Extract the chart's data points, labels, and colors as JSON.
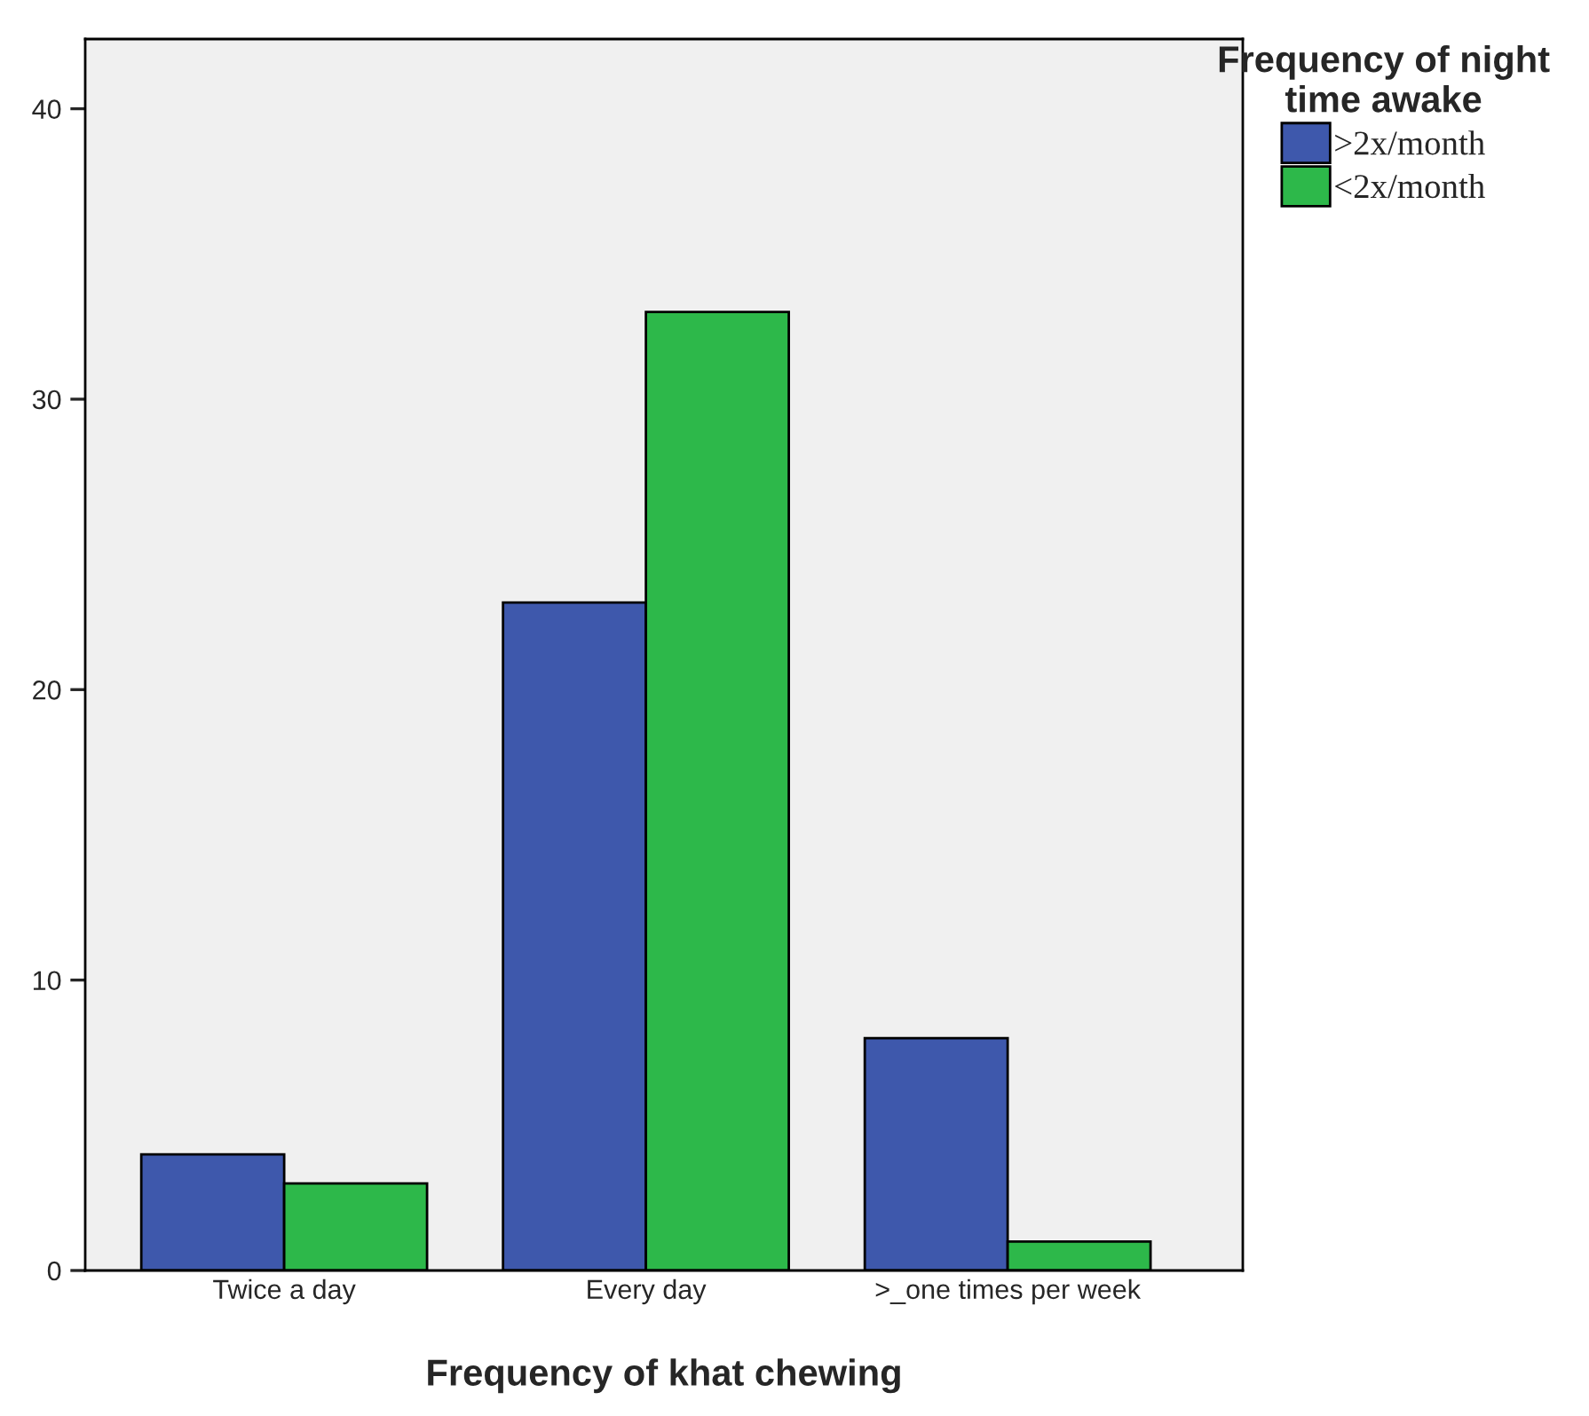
{
  "chart_data": {
    "type": "bar",
    "xlabel": "Frequency of khat chewing",
    "legend_title": "Frequency of night\ntime awake",
    "categories": [
      "Twice a day",
      "Every day",
      ">_one times per week"
    ],
    "series": [
      {
        "name": ">2x/month",
        "color": "#3e58ac",
        "values": [
          4,
          23,
          8
        ]
      },
      {
        "name": "<2x/month",
        "color": "#2db84a",
        "values": [
          3,
          33,
          1
        ]
      }
    ],
    "ylim": [
      0,
      42.4
    ],
    "yticks": [
      0,
      10,
      20,
      30,
      40
    ],
    "grid": false,
    "legend": "top right"
  }
}
